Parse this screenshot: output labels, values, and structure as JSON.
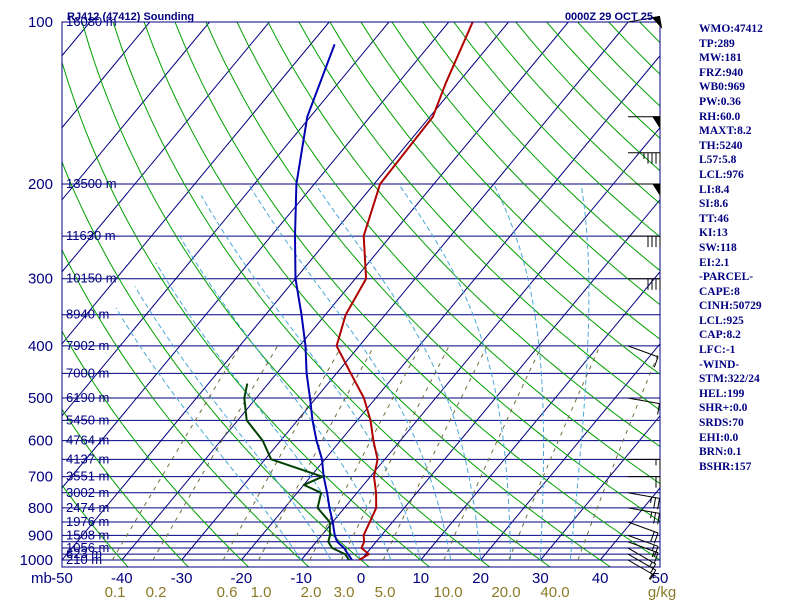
{
  "header": {
    "station_title": "RJ412 (47412) Sounding",
    "valid_time": "0000Z 29 OCT 25"
  },
  "indices": [
    "WMO:47412",
    "TP:289",
    "MW:181",
    "FRZ:940",
    "WB0:969",
    "PW:0.36",
    "RH:60.0",
    "MAXT:8.2",
    "TH:5240",
    "L57:5.8",
    "LCL:976",
    "LI:8.4",
    "SI:8.6",
    "TT:46",
    "KI:13",
    "SW:118",
    "EI:2.1",
    "-PARCEL-",
    "CAPE:8",
    "CINH:50729",
    "LCL:925",
    "CAP:8.2",
    "LFC:-1",
    "-WIND-",
    "STM:322/24",
    "HEL:199",
    "SHR+:0.0",
    "SRDS:70",
    "EHI:0.0",
    "BRN:0.1",
    "BSHR:157"
  ],
  "chart_data": {
    "type": "line",
    "subtype": "skew-T log-p sounding",
    "title": "RJ412 (47412) Sounding",
    "subtitle": "0000Z 29 OCT 25",
    "xlabel": "",
    "ylabel": "mb",
    "xlim": [
      -50,
      50
    ],
    "ylim": [
      1000,
      100
    ],
    "y_scale": "log",
    "pressure_ticks": [
      100,
      200,
      300,
      400,
      500,
      600,
      700,
      800,
      900,
      1000
    ],
    "temperature_ticks": [
      "-50",
      "-40",
      "-30",
      "-20",
      "-10",
      "0",
      "10",
      "20",
      "30",
      "40",
      "50"
    ],
    "temperature_tick_values": [
      -50,
      -40,
      -30,
      -20,
      -10,
      0,
      10,
      20,
      30,
      40,
      50
    ],
    "mixing_ratio_labels": [
      "0.1",
      "0.2",
      "0.6",
      "1.0",
      "2.0",
      "3.0",
      "5.0",
      "10.0",
      "20.0",
      "40.0"
    ],
    "mixing_ratio_values": [
      0.1,
      0.2,
      0.6,
      1.0,
      2.0,
      3.0,
      5.0,
      10.0,
      20.0,
      40.0
    ],
    "mixing_ratio_unit": "g/kg",
    "height_labels": [
      {
        "p": 1000,
        "label": "210 m"
      },
      {
        "p": 975,
        "label": "623 m"
      },
      {
        "p": 950,
        "label": "1056 m"
      },
      {
        "p": 900,
        "label": "1508 m"
      },
      {
        "p": 850,
        "label": "1976 m"
      },
      {
        "p": 800,
        "label": "2474 m"
      },
      {
        "p": 750,
        "label": "3002 m"
      },
      {
        "p": 700,
        "label": "3551 m"
      },
      {
        "p": 650,
        "label": "4137 m"
      },
      {
        "p": 600,
        "label": "4764 m"
      },
      {
        "p": 550,
        "label": "5450 m"
      },
      {
        "p": 500,
        "label": "6190 m"
      },
      {
        "p": 450,
        "label": "7000 m"
      },
      {
        "p": 400,
        "label": "7902 m"
      },
      {
        "p": 350,
        "label": "8940 m"
      },
      {
        "p": 300,
        "label": "10150 m"
      },
      {
        "p": 250,
        "label": "11630 m"
      },
      {
        "p": 200,
        "label": "13500 m"
      },
      {
        "p": 100,
        "label": "16080 m"
      }
    ],
    "isotherm_temps": [
      -160,
      -150,
      -140,
      -130,
      -120,
      -110,
      -100,
      -90,
      -80,
      -70,
      -60,
      -50,
      -40,
      -30,
      -20,
      -10,
      0,
      10,
      20,
      30,
      40,
      50
    ],
    "dry_adiabat_thetas": [
      -40,
      -30,
      -20,
      -10,
      0,
      10,
      20,
      30,
      40,
      50,
      60,
      70,
      80,
      90,
      100,
      110,
      120,
      130,
      140,
      150,
      160,
      170,
      180,
      190,
      200
    ],
    "moist_adiabat_thetaws": [
      -10,
      -5,
      0,
      5,
      10,
      15,
      20,
      25,
      30,
      35
    ],
    "series": [
      {
        "name": "",
        "color": "#b00000",
        "points": [
          [
            1000,
            -0.3
          ],
          [
            975,
            0.5
          ],
          [
            950,
            -1.6
          ],
          [
            925,
            -2.0
          ],
          [
            900,
            -3.0
          ],
          [
            850,
            -3.8
          ],
          [
            800,
            -4.7
          ],
          [
            750,
            -6.8
          ],
          [
            700,
            -9.4
          ],
          [
            650,
            -11.2
          ],
          [
            600,
            -14.5
          ],
          [
            550,
            -17.8
          ],
          [
            500,
            -22.0
          ],
          [
            450,
            -27.6
          ],
          [
            400,
            -33.8
          ],
          [
            350,
            -36.6
          ],
          [
            300,
            -38.2
          ],
          [
            250,
            -44.5
          ],
          [
            200,
            -49.0
          ],
          [
            150,
            -49.5
          ],
          [
            130,
            -52.0
          ],
          [
            100,
            -56.0
          ]
        ]
      },
      {
        "name": "",
        "color": "#0000b0",
        "points": [
          [
            1000,
            -1.5
          ],
          [
            975,
            -3.0
          ],
          [
            950,
            -4.5
          ],
          [
            925,
            -6.5
          ],
          [
            900,
            -7.8
          ],
          [
            850,
            -10.0
          ],
          [
            800,
            -12.5
          ],
          [
            750,
            -15.0
          ],
          [
            700,
            -17.8
          ],
          [
            650,
            -20.5
          ],
          [
            600,
            -24.0
          ],
          [
            550,
            -27.5
          ],
          [
            500,
            -31.0
          ],
          [
            450,
            -35.0
          ],
          [
            400,
            -39.0
          ],
          [
            350,
            -44.0
          ],
          [
            300,
            -50.0
          ],
          [
            250,
            -56.0
          ],
          [
            200,
            -63.0
          ],
          [
            150,
            -70.5
          ],
          [
            110,
            -76.0
          ]
        ]
      },
      {
        "name": "",
        "color": "#004000",
        "points": [
          [
            1000,
            -2.0
          ],
          [
            975,
            -3.5
          ],
          [
            950,
            -6.5
          ],
          [
            925,
            -8.0
          ],
          [
            900,
            -8.6
          ],
          [
            850,
            -10.5
          ],
          [
            800,
            -14.5
          ],
          [
            750,
            -16.0
          ],
          [
            725,
            -20.0
          ],
          [
            700,
            -18.0
          ],
          [
            650,
            -29.0
          ],
          [
            600,
            -33.0
          ],
          [
            550,
            -38.5
          ],
          [
            500,
            -42.0
          ],
          [
            470,
            -43.5
          ]
        ]
      }
    ],
    "wind_barbs": [
      {
        "p": 1000,
        "dir": 300,
        "kt": 5
      },
      {
        "p": 975,
        "dir": 300,
        "kt": 10
      },
      {
        "p": 950,
        "dir": 300,
        "kt": 15
      },
      {
        "p": 925,
        "dir": 290,
        "kt": 15
      },
      {
        "p": 900,
        "dir": 290,
        "kt": 15
      },
      {
        "p": 850,
        "dir": 290,
        "kt": 20
      },
      {
        "p": 800,
        "dir": 280,
        "kt": 25
      },
      {
        "p": 750,
        "dir": 280,
        "kt": 25
      },
      {
        "p": 700,
        "dir": 270,
        "kt": 20
      },
      {
        "p": 650,
        "dir": 270,
        "kt": 15
      },
      {
        "p": 500,
        "dir": 280,
        "kt": 10
      },
      {
        "p": 400,
        "dir": 290,
        "kt": 10
      },
      {
        "p": 300,
        "dir": 270,
        "kt": 40
      },
      {
        "p": 250,
        "dir": 270,
        "kt": 40
      },
      {
        "p": 200,
        "dir": 270,
        "kt": 50
      },
      {
        "p": 175,
        "dir": 270,
        "kt": 45
      },
      {
        "p": 150,
        "dir": 270,
        "kt": 50
      },
      {
        "p": 100,
        "dir": 260,
        "kt": 50
      }
    ],
    "colors": {
      "frame": "#000080",
      "isobar": "#000080",
      "isotherm": "#000080",
      "dry_adiabat": "#00a000",
      "moist_adiabat": "#4aa8d8",
      "mixing_ratio": "#707040",
      "pressure_labels": "#000080",
      "temperature_labels": "#000080",
      "mixing_ratio_labels": "#8a7a28",
      "wind_barbs": "#000000"
    }
  }
}
